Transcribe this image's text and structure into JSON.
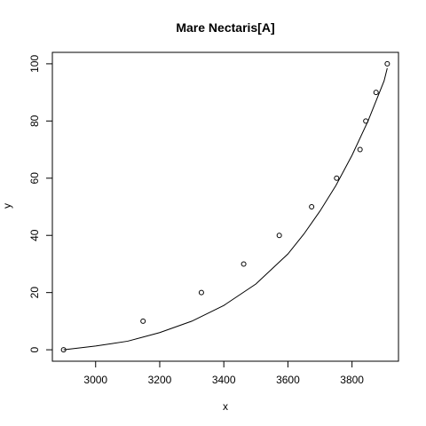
{
  "chart_data": {
    "type": "scatter",
    "title": "Mare Nectaris[A]",
    "xlabel": "x",
    "ylabel": "y",
    "xlim": [
      2865,
      3945
    ],
    "ylim": [
      -4,
      104
    ],
    "x_ticks": [
      3000,
      3200,
      3400,
      3600,
      3800
    ],
    "y_ticks": [
      0,
      20,
      40,
      60,
      80,
      100
    ],
    "grid": false,
    "legend": "none",
    "series": [
      {
        "type": "points",
        "x": [
          2900,
          3148,
          3330,
          3462,
          3573,
          3674,
          3752,
          3825,
          3843,
          3875,
          3910
        ],
        "y": [
          0,
          10,
          20,
          30,
          40,
          50,
          60,
          70,
          80,
          90,
          100
        ]
      },
      {
        "type": "fitted-curve",
        "x": [
          2900,
          3000,
          3100,
          3200,
          3300,
          3400,
          3500,
          3600,
          3650,
          3700,
          3750,
          3800,
          3850,
          3900,
          3910
        ],
        "y": [
          0,
          1.3,
          3.0,
          6.0,
          10.0,
          15.5,
          23.0,
          33.5,
          40.5,
          48.5,
          57.5,
          68.0,
          80.0,
          94.0,
          98.5
        ]
      }
    ],
    "colors": {
      "points": "#000000",
      "curve": "#000000",
      "axes": "#000000"
    }
  }
}
